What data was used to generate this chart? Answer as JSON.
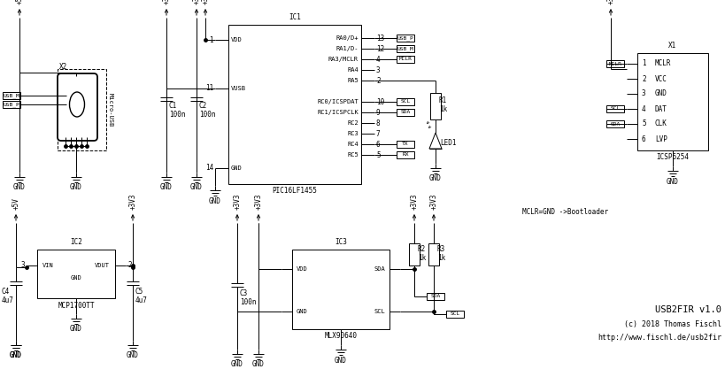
{
  "bg_color": "#ffffff",
  "line_color": "#000000",
  "title": "USB2FIR v1.0",
  "subtitle1": "(c) 2018 Thomas Fischl",
  "subtitle2": "http://www.fischl.de/usb2fir",
  "note": "MCLR=GND ->Bootloader",
  "font_family": "monospace",
  "ic1_label": "IC1",
  "ic1_name": "PIC16LF1455",
  "ic2_label": "IC2",
  "ic2_name": "MCP1700TT",
  "ic3_label": "IC3",
  "ic3_name": "MLX90640",
  "x1_label": "X1",
  "x1_name": "ICSP6254",
  "x2_label": "X2",
  "x2_name": "Micro-USB"
}
